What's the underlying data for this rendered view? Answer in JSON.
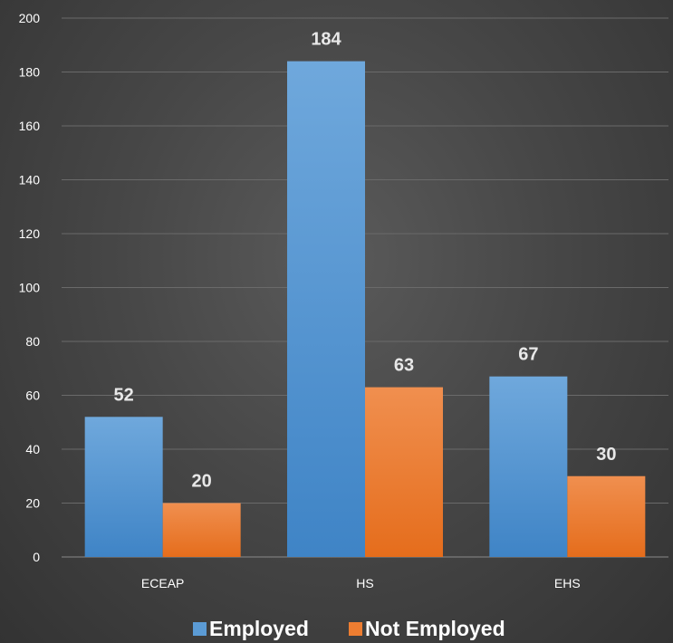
{
  "chart_data": {
    "type": "bar",
    "categories": [
      "ECEAP",
      "HS",
      "EHS"
    ],
    "series": [
      {
        "name": "Employed",
        "values": [
          52,
          184,
          67
        ],
        "color": "#5b9bd5"
      },
      {
        "name": "Not Employed",
        "values": [
          20,
          63,
          30
        ],
        "color": "#ed7d31"
      }
    ],
    "title": "",
    "xlabel": "",
    "ylabel": "",
    "ylim": [
      0,
      200
    ],
    "yticks": [
      0,
      20,
      40,
      60,
      80,
      100,
      120,
      140,
      160,
      180,
      200
    ],
    "grid": true,
    "legend": "bottom",
    "data_labels": true
  }
}
